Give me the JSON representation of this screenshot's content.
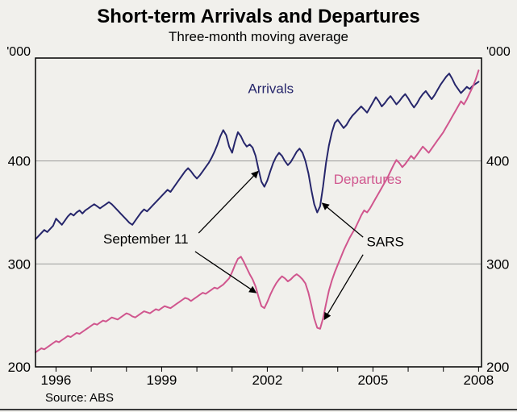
{
  "chart_data": {
    "type": "line",
    "title": "Short-term Arrivals and Departures",
    "subtitle": "Three-month moving average",
    "source": "Source: ABS",
    "unit_label": "'000",
    "ylim": [
      200,
      500
    ],
    "yticks": [
      200,
      300,
      400
    ],
    "gridlines": [
      300,
      400
    ],
    "xlim": [
      1995.4167,
      2008.0833
    ],
    "xtick_labels": [
      "1996",
      "1999",
      "2002",
      "2005",
      "2008"
    ],
    "xtick_positions": [
      1996,
      1999,
      2002,
      2005,
      2008
    ],
    "x_start": 1995.4167,
    "x_step": 0.0833333,
    "legend_position": "inline-labels",
    "grid": "horizontal-only",
    "colors": {
      "arrivals": "#26266b",
      "departures": "#d0568e",
      "grid": "#9b9b9b",
      "axis": "#000000",
      "background": "#f1f0ec"
    },
    "series": [
      {
        "name": "Arrivals",
        "color": "#26266b",
        "label_pos": {
          "x": 2002.1,
          "y": 466
        },
        "values": [
          324,
          327,
          330,
          333,
          331,
          334,
          337,
          344,
          341,
          338,
          342,
          346,
          349,
          347,
          350,
          352,
          349,
          352,
          354,
          356,
          358,
          356,
          354,
          356,
          358,
          360,
          358,
          355,
          352,
          349,
          346,
          343,
          340,
          338,
          342,
          346,
          350,
          353,
          351,
          354,
          357,
          360,
          363,
          366,
          369,
          372,
          370,
          374,
          378,
          382,
          386,
          390,
          393,
          390,
          386,
          383,
          386,
          390,
          394,
          398,
          403,
          409,
          416,
          424,
          430,
          425,
          414,
          408,
          419,
          428,
          424,
          418,
          414,
          416,
          413,
          405,
          392,
          380,
          375,
          381,
          390,
          398,
          404,
          408,
          405,
          400,
          396,
          399,
          404,
          409,
          412,
          408,
          400,
          388,
          372,
          358,
          350,
          356,
          375,
          398,
          415,
          428,
          437,
          440,
          436,
          432,
          435,
          440,
          444,
          447,
          450,
          453,
          450,
          447,
          452,
          457,
          462,
          458,
          453,
          456,
          460,
          463,
          459,
          455,
          458,
          462,
          465,
          461,
          456,
          452,
          456,
          461,
          465,
          468,
          464,
          460,
          464,
          469,
          474,
          478,
          482,
          485,
          480,
          474,
          470,
          466,
          469,
          472,
          470,
          473,
          475,
          477
        ]
      },
      {
        "name": "Departures",
        "color": "#d0568e",
        "label_pos": {
          "x": 2004.85,
          "y": 378
        },
        "values": [
          214,
          216,
          218,
          217,
          219,
          221,
          223,
          225,
          224,
          226,
          228,
          230,
          229,
          231,
          233,
          232,
          234,
          236,
          238,
          240,
          242,
          241,
          243,
          245,
          244,
          246,
          248,
          247,
          246,
          248,
          250,
          252,
          251,
          249,
          248,
          250,
          252,
          254,
          253,
          252,
          254,
          256,
          255,
          257,
          259,
          258,
          257,
          259,
          261,
          263,
          265,
          267,
          266,
          264,
          266,
          268,
          270,
          272,
          271,
          273,
          275,
          277,
          276,
          278,
          280,
          283,
          286,
          292,
          299,
          305,
          307,
          302,
          296,
          290,
          285,
          278,
          268,
          259,
          257,
          263,
          270,
          276,
          281,
          285,
          288,
          286,
          283,
          285,
          288,
          290,
          288,
          285,
          281,
          272,
          260,
          247,
          238,
          237,
          247,
          261,
          274,
          284,
          292,
          299,
          306,
          313,
          319,
          325,
          330,
          335,
          341,
          347,
          352,
          350,
          354,
          359,
          364,
          369,
          374,
          379,
          384,
          390,
          396,
          401,
          398,
          394,
          397,
          401,
          405,
          402,
          406,
          410,
          414,
          411,
          408,
          412,
          416,
          420,
          424,
          428,
          433,
          438,
          443,
          448,
          453,
          458,
          455,
          460,
          466,
          472,
          479,
          488
        ]
      }
    ],
    "annotations": [
      {
        "text": "September 11",
        "x": 1998.55,
        "y": 320,
        "arrows": [
          {
            "from": {
              "x": 2000.05,
              "y": 330
            },
            "to": {
              "x": 2001.74,
              "y": 390
            }
          },
          {
            "from": {
              "x": 1999.95,
              "y": 312
            },
            "to": {
              "x": 2001.68,
              "y": 272
            }
          }
        ]
      },
      {
        "text": "SARS",
        "x": 2005.35,
        "y": 317,
        "arrows": [
          {
            "from": {
              "x": 2004.72,
              "y": 326
            },
            "to": {
              "x": 2003.56,
              "y": 359
            }
          },
          {
            "from": {
              "x": 2004.72,
              "y": 309
            },
            "to": {
              "x": 2003.62,
              "y": 246
            }
          }
        ]
      }
    ]
  }
}
